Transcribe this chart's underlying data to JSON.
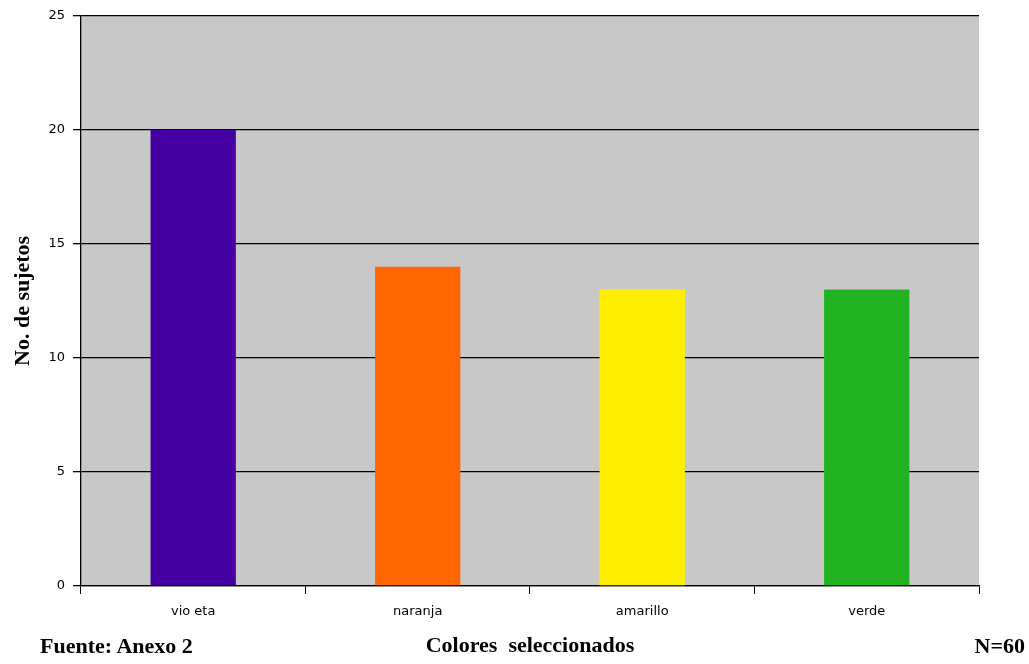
{
  "chart_data": {
    "type": "bar",
    "xlabel": "Colores  seleccionados",
    "ylabel": "No. de sujetos",
    "categories": [
      "vio eta",
      "naranja",
      "amarillo",
      "verde"
    ],
    "values": [
      20,
      14,
      13,
      13
    ],
    "colors": [
      "#4400a0",
      "#ff6600",
      "#ffee00",
      "#22b322"
    ],
    "ylim": [
      0,
      25
    ],
    "yticks": [
      0,
      5,
      10,
      15,
      20,
      25
    ],
    "grid": "y",
    "annotations": [
      "Fuente: Anexo 2",
      "N=60"
    ]
  }
}
